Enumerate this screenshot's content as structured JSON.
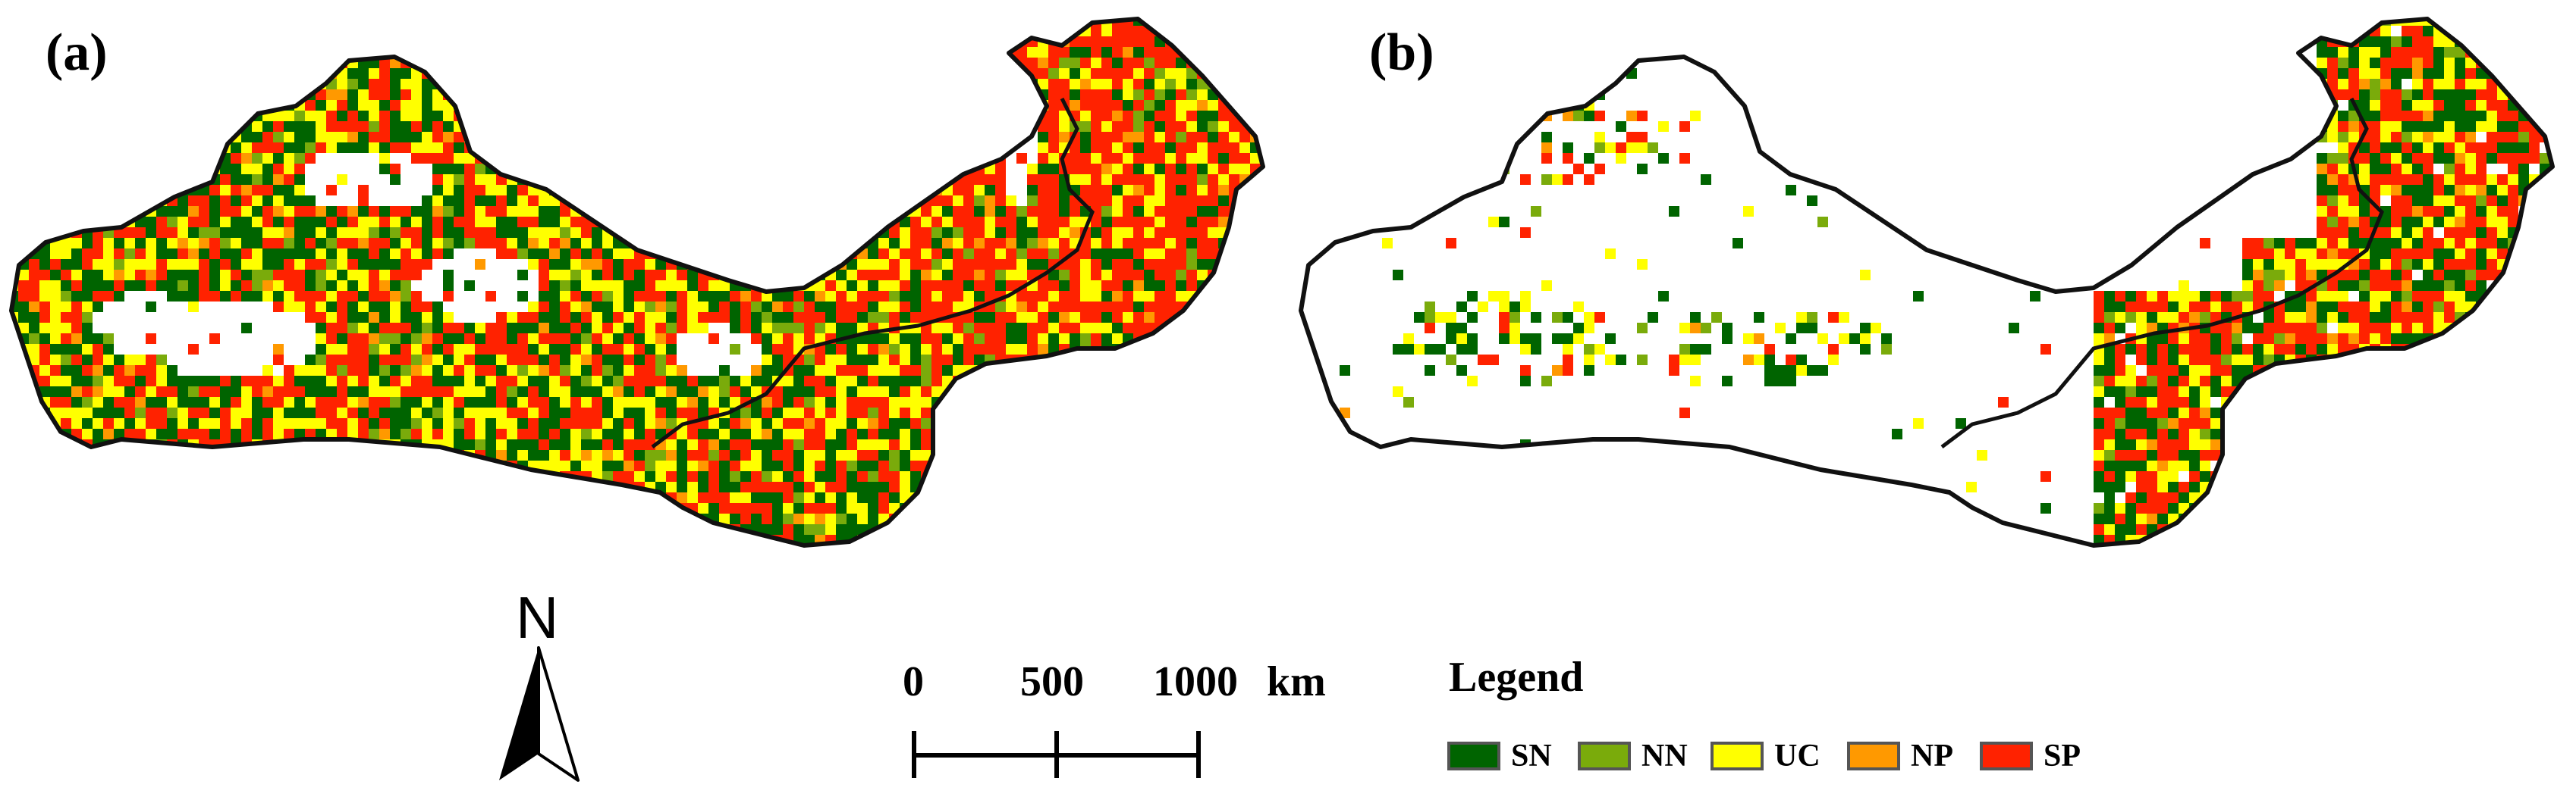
{
  "panels": [
    {
      "label": "(a)"
    },
    {
      "label": "(b)"
    }
  ],
  "north_arrow": {
    "letter": "N"
  },
  "scale_bar": {
    "ticks": [
      "0",
      "500",
      "1000"
    ],
    "unit": "km"
  },
  "legend": {
    "title": "Legend",
    "items": [
      {
        "label": "SN",
        "color": "#006400"
      },
      {
        "label": "NN",
        "color": "#7aab0b"
      },
      {
        "label": "UC",
        "color": "#ffff00"
      },
      {
        "label": "NP",
        "color": "#ff9900"
      },
      {
        "label": "SP",
        "color": "#ff2200"
      }
    ]
  },
  "map_colors": {
    "outline": "#111111",
    "empty": "#ffffff"
  }
}
